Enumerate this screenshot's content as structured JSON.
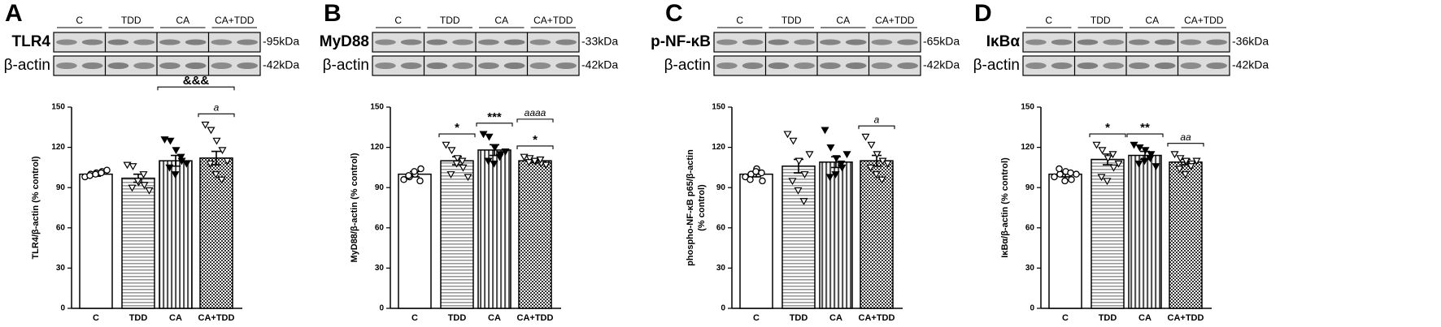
{
  "chart_data": [
    {
      "type": "bar",
      "panel": "A",
      "blot": {
        "groups": [
          "C",
          "TDD",
          "CA",
          "CA+TDD"
        ],
        "rows": [
          {
            "protein": "TLR4",
            "size": "-95kDa"
          },
          {
            "protein": "β-actin",
            "size": "-42kDa"
          }
        ]
      },
      "ylabel": [
        "TLR4/β-actin (% control)"
      ],
      "categories": [
        "C",
        "TDD",
        "CA",
        "CA+TDD"
      ],
      "values": [
        100,
        97,
        110,
        112
      ],
      "errors": [
        1.5,
        3,
        4,
        5
      ],
      "points": [
        [
          98,
          100,
          101,
          102,
          99,
          100,
          101,
          103
        ],
        [
          107,
          106,
          94,
          92,
          90,
          95,
          100,
          88
        ],
        [
          126,
          125,
          118,
          110,
          105,
          100,
          113,
          108
        ],
        [
          137,
          133,
          125,
          118,
          108,
          100,
          96,
          110
        ]
      ],
      "ylim": [
        0,
        150
      ],
      "yticks": [
        0,
        30,
        60,
        90,
        120,
        150
      ],
      "patterns": [
        "solid",
        "horizontal",
        "vertical",
        "checker"
      ],
      "markers": [
        "circle-open",
        "triangle-open",
        "triangle-filled",
        "triangle-open"
      ],
      "annotations": [
        {
          "text": "a",
          "italic": true,
          "between": [
            "CA+TDD",
            "CA+TDD"
          ]
        },
        {
          "text": "&&&",
          "italic": false,
          "between": [
            "CA",
            "CA+TDD"
          ]
        }
      ]
    },
    {
      "type": "bar",
      "panel": "B",
      "blot": {
        "groups": [
          "C",
          "TDD",
          "CA",
          "CA+TDD"
        ],
        "rows": [
          {
            "protein": "MyD88",
            "size": "-33kDa"
          },
          {
            "protein": "β-actin",
            "size": "-42kDa"
          }
        ]
      },
      "ylabel": [
        "MyD88/β-actin (% control)"
      ],
      "categories": [
        "C",
        "TDD",
        "CA",
        "CA+TDD"
      ],
      "values": [
        100,
        110,
        118,
        110
      ],
      "errors": [
        2,
        3,
        4,
        1.5
      ],
      "points": [
        [
          96,
          98,
          100,
          104,
          99,
          102,
          95
        ],
        [
          122,
          118,
          112,
          105,
          100,
          108,
          110,
          98
        ],
        [
          130,
          128,
          120,
          115,
          110,
          108,
          113,
          117
        ],
        [
          113,
          112,
          110,
          108,
          109,
          110,
          111,
          107
        ]
      ],
      "ylim": [
        0,
        150
      ],
      "yticks": [
        0,
        30,
        60,
        90,
        120,
        150
      ],
      "patterns": [
        "solid",
        "horizontal",
        "vertical",
        "checker"
      ],
      "markers": [
        "circle-open",
        "triangle-open",
        "triangle-filled",
        "triangle-open"
      ],
      "annotations": [
        {
          "text": "*",
          "italic": false,
          "between": [
            "TDD",
            "TDD"
          ]
        },
        {
          "text": "***",
          "italic": false,
          "between": [
            "CA",
            "CA"
          ]
        },
        {
          "text": "*",
          "italic": false,
          "between": [
            "CA+TDD",
            "CA+TDD"
          ]
        },
        {
          "text": "aaaa",
          "italic": true,
          "between": [
            "CA+TDD",
            "CA+TDD"
          ]
        }
      ]
    },
    {
      "type": "bar",
      "panel": "C",
      "blot": {
        "groups": [
          "C",
          "TDD",
          "CA",
          "CA+TDD"
        ],
        "rows": [
          {
            "protein": "p-NF-κB",
            "size": "-65kDa"
          },
          {
            "protein": "β-actin",
            "size": "-42kDa"
          }
        ]
      },
      "ylabel": [
        "phospho-NF-κB p65/β-actin",
        "(% control)"
      ],
      "categories": [
        "C",
        "TDD",
        "CA",
        "CA+TDD"
      ],
      "values": [
        100,
        106,
        109,
        110
      ],
      "errors": [
        2,
        5,
        4,
        4
      ],
      "points": [
        [
          98,
          100,
          104,
          95,
          96,
          102,
          101
        ],
        [
          130,
          125,
          110,
          100,
          95,
          88,
          80,
          115
        ],
        [
          133,
          120,
          112,
          105,
          98,
          100,
          108,
          115
        ],
        [
          128,
          122,
          115,
          110,
          105,
          100,
          96,
          108
        ]
      ],
      "ylim": [
        0,
        150
      ],
      "yticks": [
        0,
        30,
        60,
        90,
        120,
        150
      ],
      "patterns": [
        "solid",
        "horizontal",
        "vertical",
        "checker"
      ],
      "markers": [
        "circle-open",
        "triangle-open",
        "triangle-filled",
        "triangle-open"
      ],
      "annotations": [
        {
          "text": "a",
          "italic": true,
          "between": [
            "CA+TDD",
            "CA+TDD"
          ]
        }
      ]
    },
    {
      "type": "bar",
      "panel": "D",
      "blot": {
        "groups": [
          "C",
          "TDD",
          "CA",
          "CA+TDD"
        ],
        "rows": [
          {
            "protein": "IκBα",
            "size": "-36kDa"
          },
          {
            "protein": "β-actin",
            "size": "-42kDa"
          }
        ]
      },
      "ylabel": [
        "IκBα/β-actin (% control)"
      ],
      "categories": [
        "C",
        "TDD",
        "CA",
        "CA+TDD"
      ],
      "values": [
        100,
        111,
        114,
        109
      ],
      "errors": [
        2,
        4,
        3,
        2
      ],
      "points": [
        [
          98,
          100,
          102,
          96,
          104,
          95,
          101,
          100
        ],
        [
          122,
          118,
          112,
          105,
          98,
          95,
          115,
          108
        ],
        [
          122,
          120,
          118,
          115,
          108,
          110,
          112,
          106
        ],
        [
          115,
          112,
          110,
          108,
          104,
          100,
          106,
          110
        ]
      ],
      "ylim": [
        0,
        150
      ],
      "yticks": [
        0,
        30,
        60,
        90,
        120,
        150
      ],
      "patterns": [
        "solid",
        "horizontal",
        "vertical",
        "checker"
      ],
      "markers": [
        "circle-open",
        "triangle-open",
        "triangle-filled",
        "triangle-open"
      ],
      "annotations": [
        {
          "text": "*",
          "italic": false,
          "between": [
            "TDD",
            "TDD"
          ]
        },
        {
          "text": "**",
          "italic": false,
          "between": [
            "CA",
            "CA"
          ]
        },
        {
          "text": "aa",
          "italic": true,
          "between": [
            "CA+TDD",
            "CA+TDD"
          ]
        }
      ]
    }
  ]
}
